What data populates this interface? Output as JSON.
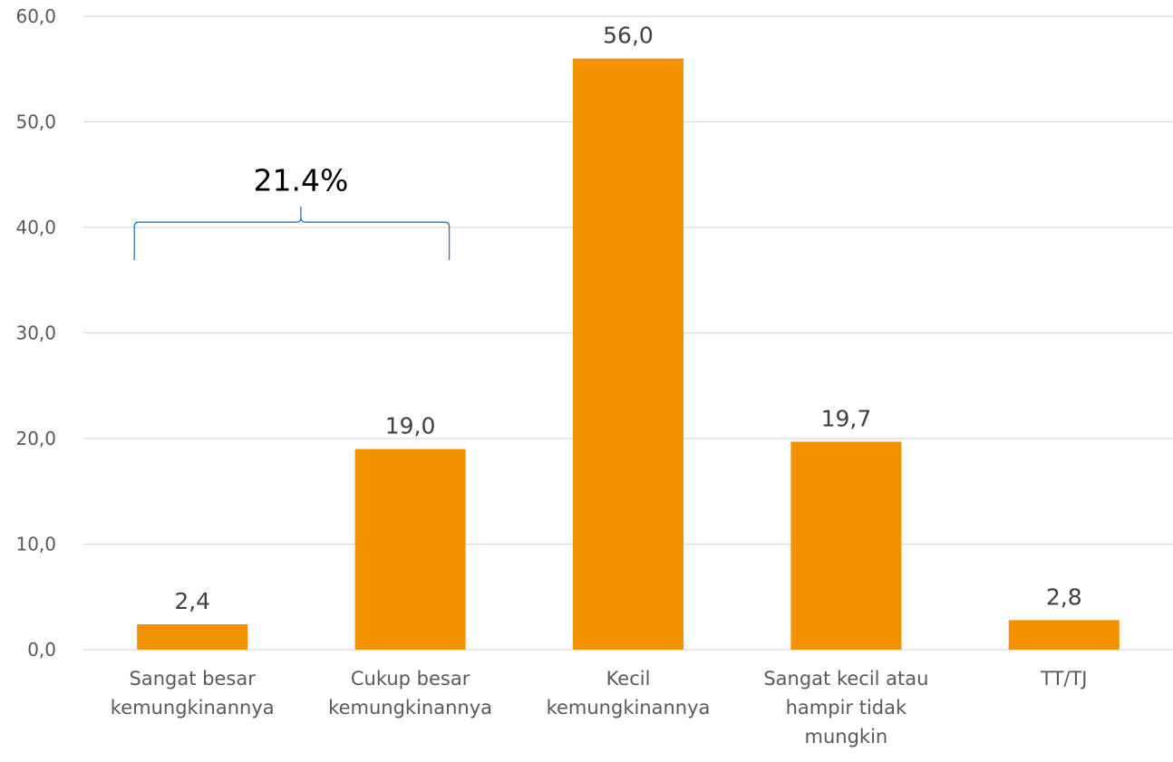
{
  "chart_data": {
    "type": "bar",
    "categories": [
      [
        "Sangat besar",
        "kemungkinannya"
      ],
      [
        "Cukup besar",
        "kemungkinannya"
      ],
      [
        "Kecil",
        "kemungkinannya"
      ],
      [
        "Sangat kecil atau",
        "hampir tidak",
        "mungkin"
      ],
      [
        "TT/TJ"
      ]
    ],
    "values": [
      2.4,
      19.0,
      56.0,
      19.7,
      2.8
    ],
    "data_labels": [
      "2,4",
      "19,0",
      "56,0",
      "19,7",
      "2,8"
    ],
    "ylim": [
      0,
      60
    ],
    "yticks": [
      0,
      10,
      20,
      30,
      40,
      50,
      60
    ],
    "ytick_labels": [
      "0,0",
      "10,0",
      "20,0",
      "30,0",
      "40,0",
      "50,0",
      "60,0"
    ],
    "grid": true,
    "legend": "none",
    "bar_color": "#F39200",
    "gridline_color": "#D9D9D9",
    "annotation": {
      "text": "21.4%",
      "spans_categories": [
        0,
        1
      ],
      "bracket_bottom_y": 37,
      "bracket_top_y": 42,
      "bracket_color": "#2E75B6"
    }
  }
}
